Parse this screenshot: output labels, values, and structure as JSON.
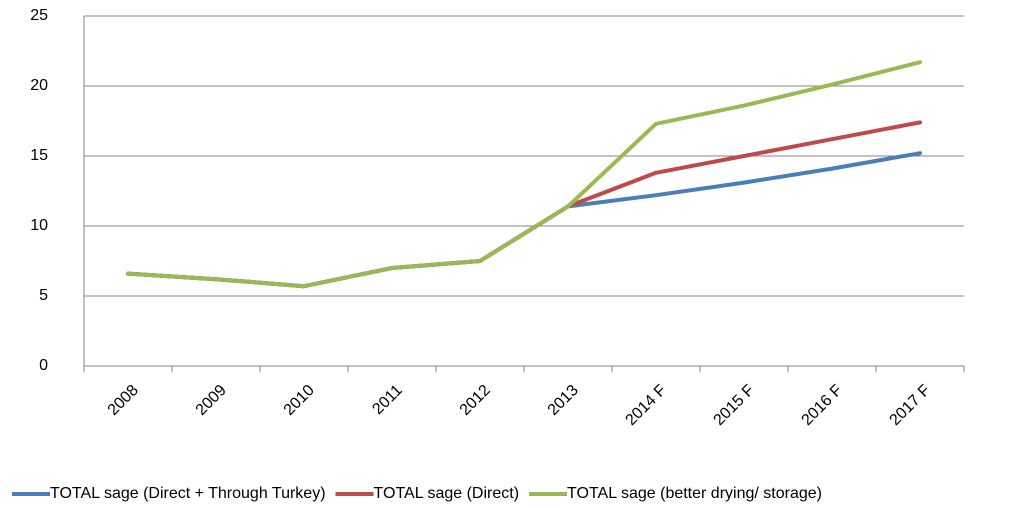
{
  "chart_data": {
    "type": "line",
    "categories": [
      "2008",
      "2009",
      "2010",
      "2011",
      "2012",
      "2013",
      "2014 F",
      "2015 F",
      "2016 F",
      "2017 F"
    ],
    "series": [
      {
        "name": "TOTAL sage (Direct + Through Turkey)",
        "color": "#4a7ebb",
        "values": [
          6.6,
          6.2,
          5.7,
          7.0,
          7.5,
          11.4,
          12.2,
          13.1,
          14.1,
          15.2
        ]
      },
      {
        "name": "TOTAL sage (Direct)",
        "color": "#be4b48",
        "values": [
          6.6,
          6.2,
          5.7,
          7.0,
          7.5,
          11.4,
          13.8,
          15.0,
          16.2,
          17.4
        ]
      },
      {
        "name": "TOTAL sage (better drying/ storage)",
        "color": "#98b954",
        "values": [
          6.6,
          6.2,
          5.7,
          7.0,
          7.5,
          11.4,
          17.3,
          18.6,
          20.1,
          21.7
        ]
      }
    ],
    "ylim": [
      0,
      25
    ],
    "yticks": [
      0,
      5,
      10,
      15,
      20,
      25
    ],
    "grid": true,
    "legend": "bottom"
  }
}
